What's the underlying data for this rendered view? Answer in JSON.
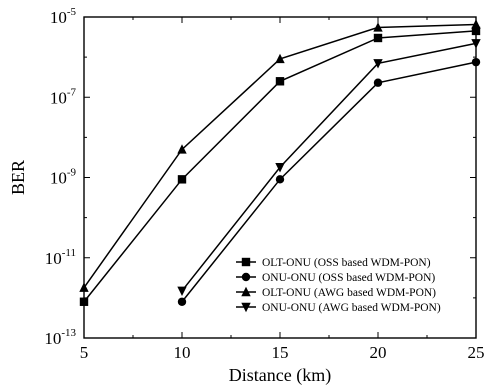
{
  "chart_data": {
    "type": "line",
    "title": "",
    "xlabel": "Distance (km)",
    "ylabel": "BER",
    "xlim": [
      5,
      25
    ],
    "ylim_exponent": [
      -13,
      -5
    ],
    "y_scale": "log",
    "x_ticks": [
      5,
      10,
      15,
      20,
      25
    ],
    "x_tick_labels": [
      "5",
      "10",
      "15",
      "20",
      "25"
    ],
    "y_ticks_exponent": [
      -13,
      -11,
      -9,
      -7,
      -5
    ],
    "y_tick_base": "10",
    "y_tick_exponent_labels": [
      "-13",
      "-11",
      "-9",
      "-7",
      "-5"
    ],
    "grid": false,
    "legend_position": "bottom-right",
    "series": [
      {
        "name": "OLT-ONU (OSS based WDM-PON)",
        "marker": "square",
        "x": [
          5,
          10,
          15,
          20,
          25
        ],
        "y": [
          8e-13,
          9e-10,
          2.5e-07,
          3e-06,
          4.5e-06
        ]
      },
      {
        "name": "ONU-ONU (OSS based WDM-PON)",
        "marker": "circle",
        "x": [
          10,
          15,
          20,
          25
        ],
        "y": [
          8e-13,
          9e-10,
          2.3e-07,
          7.5e-07
        ]
      },
      {
        "name": "OLT-ONU (AWG based WDM-PON)",
        "marker": "triangle-up",
        "x": [
          5,
          10,
          15,
          20,
          25
        ],
        "y": [
          1.8e-12,
          5e-09,
          9e-07,
          5.5e-06,
          6.5e-06
        ]
      },
      {
        "name": "ONU-ONU (AWG based WDM-PON)",
        "marker": "triangle-down",
        "x": [
          10,
          15,
          20,
          25
        ],
        "y": [
          1.5e-12,
          1.8e-09,
          7e-07,
          2.2e-06
        ]
      }
    ]
  }
}
